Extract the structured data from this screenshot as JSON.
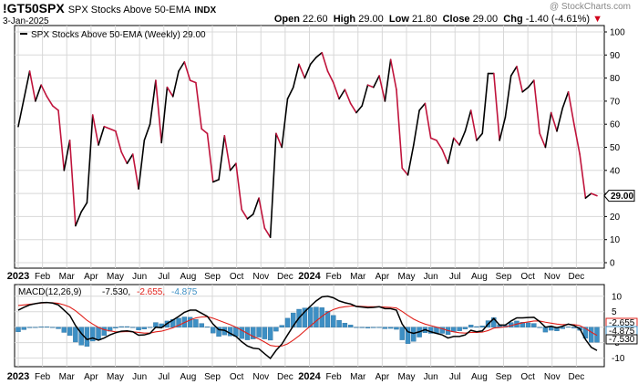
{
  "header": {
    "symbol": "!GT50SPX",
    "name": "SPX Stocks Above 50-EMA",
    "exchange": "INDX",
    "date": "3-Jan-2025",
    "watermark": "@ StockCharts.com",
    "quote": {
      "open_label": "Open",
      "open": "22.60",
      "high_label": "High",
      "high": "29.00",
      "low_label": "Low",
      "low": "21.80",
      "close_label": "Close",
      "close": "29.00",
      "chg_label": "Chg",
      "chg": "-1.40 (-4.61%)",
      "chg_arrow": "▼",
      "chg_color": "#d0021b"
    }
  },
  "colors": {
    "up": "#000000",
    "down": "#c0143c",
    "macd": "#000000",
    "signal": "#e0201a",
    "histogram": "#3d8fc4",
    "grid": "#d8d8d8"
  },
  "chart_data": [
    {
      "type": "line",
      "legend": "SPX Stocks Above 50-EMA (Weekly) 29.00",
      "last_value_label": "29.00",
      "ylim": [
        0,
        100
      ],
      "yticks": [
        0,
        10,
        20,
        30,
        40,
        50,
        60,
        70,
        80,
        90,
        100
      ],
      "grid": true,
      "x_labels": [
        "2023",
        "Feb",
        "Mar",
        "Apr",
        "May",
        "Jun",
        "Jul",
        "Aug",
        "Sep",
        "Oct",
        "Nov",
        "Dec",
        "2024",
        "Feb",
        "Mar",
        "Apr",
        "May",
        "Jun",
        "Jul",
        "Aug",
        "Sep",
        "Oct",
        "Nov",
        "Dec"
      ],
      "series": [
        {
          "values": [
            59,
            71,
            83,
            70,
            77,
            72,
            68,
            66,
            40,
            53,
            16,
            22,
            26,
            64,
            51,
            59,
            58,
            57,
            48,
            43,
            47,
            32,
            53,
            60,
            79,
            52,
            76,
            72,
            83,
            87,
            79,
            78,
            58,
            56,
            35,
            36,
            55,
            40,
            43,
            23,
            19,
            21,
            28,
            15,
            11,
            56,
            50,
            71,
            76,
            86,
            80,
            86,
            89,
            91,
            83,
            78,
            71,
            75,
            69,
            65,
            68,
            77,
            76,
            81,
            70,
            88,
            75,
            41,
            38,
            51,
            66,
            69,
            54,
            53,
            49,
            43,
            54,
            51,
            57,
            66,
            53,
            56,
            82,
            82,
            53,
            63,
            81,
            85,
            74,
            76,
            79,
            56,
            50,
            65,
            57,
            67,
            74,
            60,
            47,
            28,
            30,
            29
          ]
        }
      ]
    },
    {
      "type": "line",
      "legend_title": "MACD(12,26,9)",
      "legend_values": [
        "-7.530",
        "-2.655",
        "-4.875"
      ],
      "ylim": [
        -11,
        12
      ],
      "yticks": [
        -10,
        -5,
        0,
        5,
        10
      ],
      "grid": true,
      "end_labels": [
        "-2.655",
        "-4.875",
        "-7.530"
      ],
      "series": [
        {
          "name": "MACD",
          "values": [
            5.5,
            6.4,
            7.2,
            7.6,
            7.9,
            8.0,
            7.8,
            7.2,
            5.5,
            3.8,
            0.5,
            -2.0,
            -4.0,
            -3.5,
            -4.2,
            -3.5,
            -2.5,
            -1.8,
            -1.3,
            -1.2,
            -1.5,
            -2.6,
            -2.5,
            -2.0,
            0.0,
            -0.2,
            1.2,
            2.3,
            3.5,
            4.8,
            5.5,
            5.5,
            4.5,
            3.5,
            1.0,
            -0.8,
            -1.0,
            -2.0,
            -3.0,
            -4.7,
            -6.1,
            -6.8,
            -7.0,
            -8.6,
            -10.1,
            -7.5,
            -5.5,
            -2.5,
            0.4,
            3.0,
            5.0,
            6.8,
            8.5,
            9.8,
            10.0,
            9.5,
            8.5,
            7.9,
            7.5,
            6.7,
            6.5,
            6.3,
            6.4,
            6.6,
            6.0,
            6.0,
            5.5,
            1.0,
            -1.5,
            -2.0,
            -1.5,
            -0.8,
            -1.5,
            -2.0,
            -2.5,
            -3.5,
            -3.0,
            -3.0,
            -2.5,
            -1.0,
            -1.5,
            -1.2,
            1.0,
            2.8,
            0.7,
            0.7,
            2.0,
            3.0,
            3.0,
            3.1,
            3.2,
            1.8,
            0.0,
            0.3,
            -0.2,
            0.3,
            1.0,
            0.5,
            -0.5,
            -4.0,
            -6.5,
            -7.53
          ]
        },
        {
          "name": "Signal",
          "values": [
            7.0,
            7.2,
            7.4,
            7.6,
            7.8,
            7.9,
            7.9,
            7.7,
            7.2,
            6.5,
            5.3,
            3.8,
            2.2,
            1.0,
            -0.1,
            -0.8,
            -1.2,
            -1.5,
            -1.5,
            -1.4,
            -1.5,
            -1.7,
            -1.9,
            -1.9,
            -1.5,
            -1.3,
            -0.8,
            -0.2,
            0.6,
            1.5,
            2.3,
            3.0,
            3.3,
            3.4,
            2.9,
            2.2,
            1.5,
            0.8,
            0.0,
            -1.0,
            -2.0,
            -3.0,
            -3.8,
            -4.8,
            -5.9,
            -6.2,
            -6.1,
            -5.4,
            -4.2,
            -2.8,
            -1.2,
            0.4,
            2.0,
            3.5,
            4.8,
            5.7,
            6.3,
            6.6,
            6.8,
            6.8,
            6.7,
            6.6,
            6.6,
            6.6,
            6.5,
            6.4,
            6.2,
            5.1,
            3.8,
            2.6,
            1.7,
            1.0,
            0.5,
            0.0,
            -0.5,
            -1.1,
            -1.5,
            -1.8,
            -1.9,
            -1.7,
            -1.7,
            -1.6,
            -1.1,
            -0.3,
            -0.1,
            0.1,
            0.5,
            1.0,
            1.4,
            1.7,
            2.0,
            2.0,
            1.6,
            1.3,
            1.0,
            0.8,
            0.9,
            0.8,
            0.5,
            -0.4,
            -1.6,
            -2.655
          ]
        }
      ]
    }
  ]
}
